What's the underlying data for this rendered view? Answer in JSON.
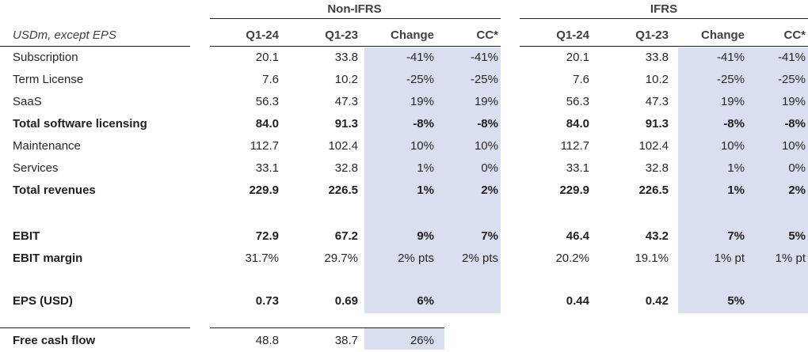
{
  "groups": {
    "nonifrs": "Non-IFRS",
    "ifrs": "IFRS"
  },
  "unit_label": "USDm, except EPS",
  "headers": {
    "nonifrs": [
      "Q1-24",
      "Q1-23",
      "Change",
      "CC*"
    ],
    "ifrs": [
      "Q1-24",
      "Q1-23",
      "Change",
      "CC*"
    ]
  },
  "rows": [
    {
      "label": "Subscription",
      "bold": false,
      "nonifrs": [
        "20.1",
        "33.8",
        "-41%",
        "-41%"
      ],
      "ifrs": [
        "20.1",
        "33.8",
        "-41%",
        "-41%"
      ]
    },
    {
      "label": "Term License",
      "bold": false,
      "nonifrs": [
        "7.6",
        "10.2",
        "-25%",
        "-25%"
      ],
      "ifrs": [
        "7.6",
        "10.2",
        "-25%",
        "-25%"
      ]
    },
    {
      "label": "SaaS",
      "bold": false,
      "nonifrs": [
        "56.3",
        "47.3",
        "19%",
        "19%"
      ],
      "ifrs": [
        "56.3",
        "47.3",
        "19%",
        "19%"
      ]
    },
    {
      "label": "Total software licensing",
      "bold": true,
      "nonifrs": [
        "84.0",
        "91.3",
        "-8%",
        "-8%"
      ],
      "ifrs": [
        "84.0",
        "91.3",
        "-8%",
        "-8%"
      ]
    },
    {
      "label": "Maintenance",
      "bold": false,
      "nonifrs": [
        "112.7",
        "102.4",
        "10%",
        "10%"
      ],
      "ifrs": [
        "112.7",
        "102.4",
        "10%",
        "10%"
      ]
    },
    {
      "label": "Services",
      "bold": false,
      "nonifrs": [
        "33.1",
        "32.8",
        "1%",
        "0%"
      ],
      "ifrs": [
        "33.1",
        "32.8",
        "1%",
        "0%"
      ]
    },
    {
      "label": "Total revenues",
      "bold": true,
      "nonifrs": [
        "229.9",
        "226.5",
        "1%",
        "2%"
      ],
      "ifrs": [
        "229.9",
        "226.5",
        "1%",
        "2%"
      ]
    },
    {
      "label": "EBIT",
      "bold": true,
      "nonifrs": [
        "72.9",
        "67.2",
        "9%",
        "7%"
      ],
      "ifrs": [
        "46.4",
        "43.2",
        "7%",
        "5%"
      ]
    },
    {
      "label": "EBIT margin",
      "bold": true,
      "nonifrs": [
        "31.7%",
        "29.7%",
        "2% pts",
        "2% pts"
      ],
      "ifrs": [
        "20.2%",
        "19.1%",
        "1% pt",
        "1% pt"
      ]
    },
    {
      "label": "EPS (USD)",
      "bold": true,
      "nonifrs": [
        "0.73",
        "0.69",
        "6%",
        ""
      ],
      "ifrs": [
        "0.44",
        "0.42",
        "5%",
        ""
      ]
    },
    {
      "label": "Free cash flow",
      "bold": true,
      "nonifrs": [
        "48.8",
        "38.7",
        "26%",
        ""
      ],
      "ifrs": [
        "",
        "",
        "",
        ""
      ]
    }
  ],
  "colors": {
    "highlight": "#dadfef",
    "rule": "#1f1f1f"
  }
}
